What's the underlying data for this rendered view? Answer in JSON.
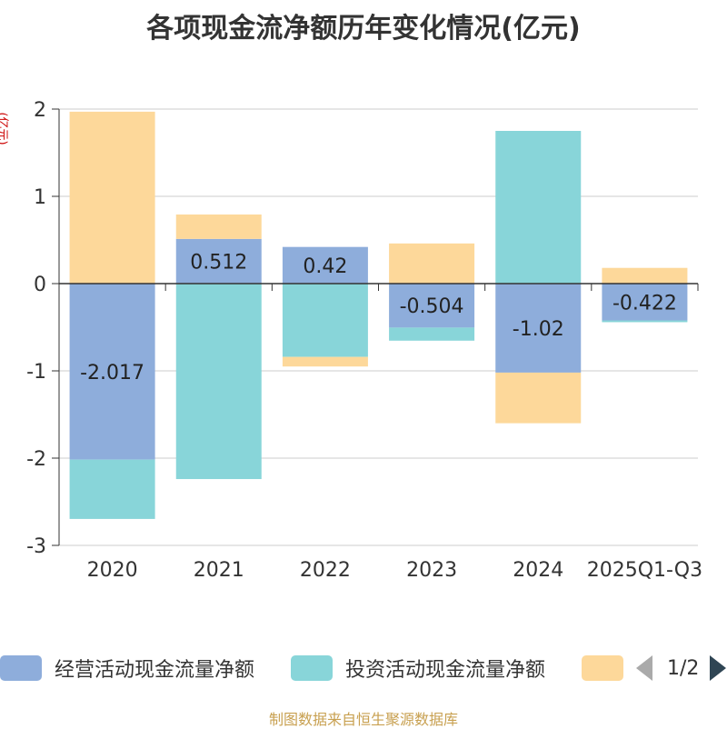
{
  "chart_data": {
    "type": "bar",
    "stacked": true,
    "title": "各项现金流净额历年变化情况(亿元)",
    "ylabel": "(亿元)",
    "categories": [
      "2020",
      "2021",
      "2022",
      "2023",
      "2024",
      "2025Q1-Q3"
    ],
    "ylim": [
      -3,
      2
    ],
    "yticks": [
      2,
      1,
      0,
      -1,
      -2,
      -3
    ],
    "grid": true,
    "legend_position": "bottom",
    "series": [
      {
        "name": "经营活动现金流量净额",
        "color": "#8eaddb",
        "values": [
          -2.017,
          0.512,
          0.42,
          -0.504,
          -1.02,
          -0.422
        ],
        "labels": [
          "-2.017",
          "0.512",
          "0.42",
          "-0.504",
          "-1.02",
          "-0.422"
        ]
      },
      {
        "name": "投资活动现金流量净额",
        "color": "#88d5d9",
        "values": [
          -0.68,
          -2.24,
          -0.84,
          -0.15,
          1.75,
          -0.02
        ]
      },
      {
        "name": "",
        "color": "#fdd89a",
        "values": [
          1.97,
          0.28,
          -0.11,
          0.46,
          -0.58,
          0.18
        ]
      }
    ]
  },
  "legend": {
    "page": "1/2"
  },
  "source_note": "制图数据来自恒生聚源数据库"
}
